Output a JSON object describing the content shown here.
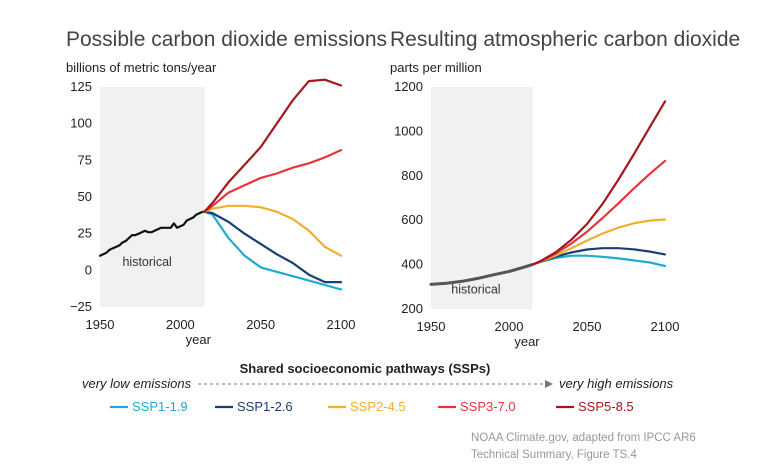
{
  "colors": {
    "historical": "#111111",
    "historical_concentration": "#555555",
    "shade": "#f1f1f1",
    "SSP1-1.9": "#1eaad2",
    "SSP1-2.6": "#1b3f73",
    "SSP2-4.5": "#f2ae2e",
    "SSP3-7.0": "#e8343b",
    "SSP5-8.5": "#a3181e"
  },
  "legend": {
    "title": "Shared socioeconomic pathways (SSPs)",
    "low_label": "very low emissions",
    "high_label": "very high emissions",
    "items": [
      {
        "name": "SSP1-1.9",
        "color": "#1eaad2"
      },
      {
        "name": "SSP1-2.6",
        "color": "#1b3f73"
      },
      {
        "name": "SSP2-4.5",
        "color": "#f2ae2e"
      },
      {
        "name": "SSP3-7.0",
        "color": "#e8343b"
      },
      {
        "name": "SSP5-8.5",
        "color": "#a3181e"
      }
    ]
  },
  "credit": {
    "line1": "NOAA Climate.gov, adapted from IPCC AR6",
    "line2": "Technical Summary, Figure TS.4"
  },
  "chart_data": [
    {
      "type": "line",
      "title": "Possible carbon dioxide emissions",
      "ylabel": "billions of metric tons/year",
      "xlabel": "year",
      "xlim": [
        1950,
        2100
      ],
      "ylim": [
        -25,
        125
      ],
      "xticks": [
        1950,
        2000,
        2050,
        2100
      ],
      "yticks": [
        -25,
        0,
        25,
        50,
        75,
        100,
        125
      ],
      "historical_shading": [
        1950,
        2015
      ],
      "historical_label": "historical",
      "grid": false,
      "series": [
        {
          "name": "historical",
          "x": [
            1950,
            1952,
            1954,
            1956,
            1958,
            1960,
            1962,
            1964,
            1966,
            1968,
            1970,
            1972,
            1974,
            1976,
            1978,
            1980,
            1982,
            1984,
            1986,
            1988,
            1990,
            1992,
            1994,
            1996,
            1998,
            2000,
            2002,
            2004,
            2006,
            2008,
            2010,
            2012,
            2014,
            2015
          ],
          "y": [
            10,
            11,
            12,
            14,
            15,
            16,
            17,
            19,
            20,
            22,
            24,
            24,
            25,
            26,
            27,
            26,
            26,
            27,
            28,
            29,
            29,
            29,
            29,
            32,
            29,
            30,
            31,
            34,
            35,
            36,
            38,
            39,
            40,
            40
          ]
        },
        {
          "name": "SSP1-1.9",
          "x": [
            2015,
            2020,
            2030,
            2040,
            2050,
            2060,
            2070,
            2080,
            2090,
            2100
          ],
          "y": [
            40,
            38,
            22,
            10,
            2,
            -1,
            -4,
            -7,
            -10,
            -13
          ]
        },
        {
          "name": "SSP1-2.6",
          "x": [
            2015,
            2020,
            2030,
            2040,
            2050,
            2060,
            2070,
            2080,
            2090,
            2100
          ],
          "y": [
            40,
            39,
            33,
            25,
            18,
            11,
            5,
            -3,
            -8,
            -8
          ]
        },
        {
          "name": "SSP2-4.5",
          "x": [
            2015,
            2020,
            2030,
            2040,
            2050,
            2060,
            2070,
            2080,
            2090,
            2100
          ],
          "y": [
            40,
            42,
            44,
            44,
            43,
            40,
            35,
            27,
            16,
            10
          ]
        },
        {
          "name": "SSP3-7.0",
          "x": [
            2015,
            2020,
            2030,
            2040,
            2050,
            2060,
            2070,
            2080,
            2090,
            2100
          ],
          "y": [
            40,
            44,
            53,
            58,
            63,
            66,
            70,
            73,
            77,
            82
          ]
        },
        {
          "name": "SSP5-8.5",
          "x": [
            2015,
            2020,
            2030,
            2040,
            2050,
            2060,
            2070,
            2080,
            2090,
            2100
          ],
          "y": [
            40,
            46,
            60,
            72,
            84,
            100,
            116,
            129,
            130,
            126
          ]
        }
      ]
    },
    {
      "type": "line",
      "title": "Resulting atmospheric carbon dioxide",
      "ylabel": "parts per million",
      "xlabel": "year",
      "xlim": [
        1950,
        2100
      ],
      "ylim": [
        200,
        1200
      ],
      "xticks": [
        1950,
        2000,
        2050,
        2100
      ],
      "yticks": [
        200,
        400,
        600,
        800,
        1000,
        1200
      ],
      "historical_shading": [
        1950,
        2015
      ],
      "historical_label": "historical",
      "grid": false,
      "series": [
        {
          "name": "historical",
          "x": [
            1950,
            1960,
            1970,
            1980,
            1990,
            2000,
            2010,
            2015
          ],
          "y": [
            311,
            316,
            325,
            338,
            354,
            369,
            389,
            400
          ]
        },
        {
          "name": "SSP1-1.9",
          "x": [
            2015,
            2020,
            2030,
            2040,
            2050,
            2060,
            2070,
            2080,
            2090,
            2100
          ],
          "y": [
            400,
            412,
            430,
            440,
            440,
            435,
            428,
            419,
            410,
            394
          ]
        },
        {
          "name": "SSP1-2.6",
          "x": [
            2015,
            2020,
            2030,
            2040,
            2050,
            2060,
            2070,
            2080,
            2090,
            2100
          ],
          "y": [
            400,
            412,
            436,
            455,
            468,
            474,
            474,
            469,
            459,
            446
          ]
        },
        {
          "name": "SSP2-4.5",
          "x": [
            2015,
            2020,
            2030,
            2040,
            2050,
            2060,
            2070,
            2080,
            2090,
            2100
          ],
          "y": [
            400,
            413,
            441,
            474,
            508,
            540,
            566,
            586,
            598,
            603
          ]
        },
        {
          "name": "SSP3-7.0",
          "x": [
            2015,
            2020,
            2030,
            2040,
            2050,
            2060,
            2070,
            2080,
            2090,
            2100
          ],
          "y": [
            400,
            414,
            450,
            495,
            548,
            610,
            675,
            743,
            807,
            867
          ]
        },
        {
          "name": "SSP5-8.5",
          "x": [
            2015,
            2020,
            2030,
            2040,
            2050,
            2060,
            2070,
            2080,
            2090,
            2100
          ],
          "y": [
            400,
            415,
            456,
            512,
            583,
            674,
            781,
            897,
            1016,
            1135
          ]
        }
      ]
    }
  ]
}
